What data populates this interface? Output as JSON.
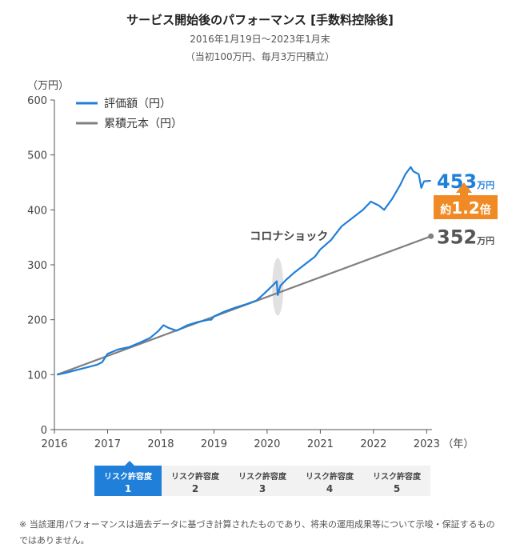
{
  "header": {
    "title": "サービス開始後のパフォーマンス [手数料控除後]",
    "period": "2016年1月19日〜2023年1月末",
    "condition": "（当初100万円、毎月3万円積立）"
  },
  "chart_data": {
    "type": "line",
    "ylabel": "（万円）",
    "xunit": "（年）",
    "x_ticks": [
      "2016",
      "2017",
      "2018",
      "2019",
      "2020",
      "2021",
      "2022",
      "2023"
    ],
    "y_ticks": [
      0,
      100,
      200,
      300,
      400,
      500,
      600
    ],
    "ylim": [
      0,
      600
    ],
    "xlim": [
      2016.0,
      2023.1
    ],
    "grid": false,
    "legend_position": "top-left",
    "series": [
      {
        "name": "評価額（円）",
        "color": "#1f7fd9",
        "points": [
          [
            2016.05,
            100
          ],
          [
            2016.2,
            103
          ],
          [
            2016.4,
            108
          ],
          [
            2016.6,
            113
          ],
          [
            2016.8,
            118
          ],
          [
            2016.9,
            123
          ],
          [
            2017.0,
            138
          ],
          [
            2017.2,
            146
          ],
          [
            2017.4,
            150
          ],
          [
            2017.6,
            158
          ],
          [
            2017.8,
            167
          ],
          [
            2017.95,
            179
          ],
          [
            2018.05,
            190
          ],
          [
            2018.15,
            185
          ],
          [
            2018.3,
            180
          ],
          [
            2018.5,
            190
          ],
          [
            2018.7,
            196
          ],
          [
            2018.9,
            200
          ],
          [
            2018.95,
            200
          ],
          [
            2019.0,
            206
          ],
          [
            2019.2,
            215
          ],
          [
            2019.4,
            222
          ],
          [
            2019.6,
            228
          ],
          [
            2019.8,
            235
          ],
          [
            2019.95,
            248
          ],
          [
            2020.1,
            262
          ],
          [
            2020.18,
            270
          ],
          [
            2020.2,
            245
          ],
          [
            2020.25,
            262
          ],
          [
            2020.35,
            272
          ],
          [
            2020.5,
            285
          ],
          [
            2020.7,
            300
          ],
          [
            2020.9,
            315
          ],
          [
            2021.0,
            328
          ],
          [
            2021.2,
            345
          ],
          [
            2021.4,
            370
          ],
          [
            2021.6,
            385
          ],
          [
            2021.8,
            400
          ],
          [
            2021.95,
            415
          ],
          [
            2022.1,
            408
          ],
          [
            2022.2,
            400
          ],
          [
            2022.35,
            420
          ],
          [
            2022.5,
            445
          ],
          [
            2022.6,
            465
          ],
          [
            2022.7,
            478
          ],
          [
            2022.75,
            470
          ],
          [
            2022.85,
            465
          ],
          [
            2022.9,
            440
          ],
          [
            2022.95,
            452
          ],
          [
            2023.08,
            453
          ]
        ]
      },
      {
        "name": "累積元本（円）",
        "color": "#808080",
        "points": [
          [
            2016.05,
            100
          ],
          [
            2023.08,
            352
          ]
        ]
      }
    ],
    "annotations": {
      "event_label": "コロナショック",
      "event_x": 2020.2,
      "final_value": "453",
      "final_principal": "352",
      "unit": "万円",
      "ratio_prefix": "約",
      "ratio_value": "1.2",
      "ratio_suffix": "倍",
      "ratio_color": "#f08a24"
    }
  },
  "risk_selector": {
    "items": [
      {
        "label": "リスク許容度",
        "level": "1",
        "active": true
      },
      {
        "label": "リスク許容度",
        "level": "2",
        "active": false
      },
      {
        "label": "リスク許容度",
        "level": "3",
        "active": false
      },
      {
        "label": "リスク許容度",
        "level": "4",
        "active": false
      },
      {
        "label": "リスク許容度",
        "level": "5",
        "active": false
      }
    ]
  },
  "footnote": "※ 当該運用パフォーマンスは過去データに基づき計算されたものであり、将来の運用成果等について示唆・保証するものではありません。"
}
